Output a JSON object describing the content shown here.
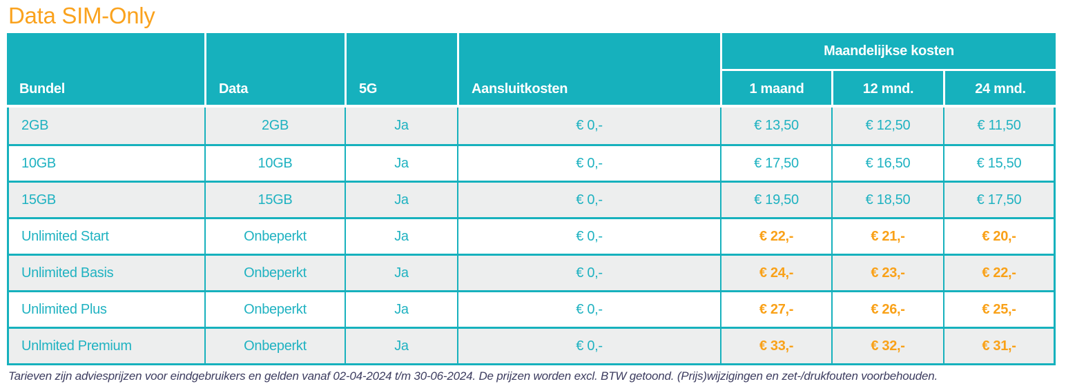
{
  "page": {
    "title": "Data SIM-Only",
    "footnote": "Tarieven zijn adviesprijzen voor eindgebruikers en gelden vanaf 02-04-2024 t/m 30-06-2024. De prijzen worden excl. BTW getoond. (Prijs)wijzigingen en zet-/drukfouten voorbehouden."
  },
  "table": {
    "headers": {
      "bundel": "Bundel",
      "data": "Data",
      "g5": "5G",
      "aansluitkosten": "Aansluitkosten",
      "group": "Maandelijkse kosten",
      "m1": "1 maand",
      "m12": "12 mnd.",
      "m24": "24 mnd."
    },
    "rows": [
      {
        "bundel": "2GB",
        "data": "2GB",
        "g5": "Ja",
        "aansluitkosten": "€ 0,-",
        "m1": "€ 13,50",
        "m12": "€ 12,50",
        "m24": "€ 11,50",
        "accent": false
      },
      {
        "bundel": "10GB",
        "data": "10GB",
        "g5": "Ja",
        "aansluitkosten": "€ 0,-",
        "m1": "€ 17,50",
        "m12": "€ 16,50",
        "m24": "€ 15,50",
        "accent": false
      },
      {
        "bundel": "15GB",
        "data": "15GB",
        "g5": "Ja",
        "aansluitkosten": "€ 0,-",
        "m1": "€ 19,50",
        "m12": "€ 18,50",
        "m24": "€ 17,50",
        "accent": false
      },
      {
        "bundel": "Unlimited Start",
        "data": "Onbeperkt",
        "g5": "Ja",
        "aansluitkosten": "€ 0,-",
        "m1": "€ 22,-",
        "m12": "€ 21,-",
        "m24": "€ 20,-",
        "accent": true
      },
      {
        "bundel": "Unlimited Basis",
        "data": "Onbeperkt",
        "g5": "Ja",
        "aansluitkosten": "€ 0,-",
        "m1": "€ 24,-",
        "m12": "€ 23,-",
        "m24": "€ 22,-",
        "accent": true
      },
      {
        "bundel": "Unlimited Plus",
        "data": "Onbeperkt",
        "g5": "Ja",
        "aansluitkosten": "€ 0,-",
        "m1": "€ 27,-",
        "m12": "€ 26,-",
        "m24": "€ 25,-",
        "accent": true
      },
      {
        "bundel": "Unlmited Premium",
        "data": "Onbeperkt",
        "g5": "Ja",
        "aansluitkosten": "€ 0,-",
        "m1": "€ 33,-",
        "m12": "€ 32,-",
        "m24": "€ 31,-",
        "accent": true
      }
    ]
  },
  "colors": {
    "teal": "#16B1BD",
    "orange_accent": "#F9A118",
    "title_orange": "#FAA21D",
    "alt_row_bg": "#EDEEEE",
    "footnote_text": "#3C3C5F"
  }
}
